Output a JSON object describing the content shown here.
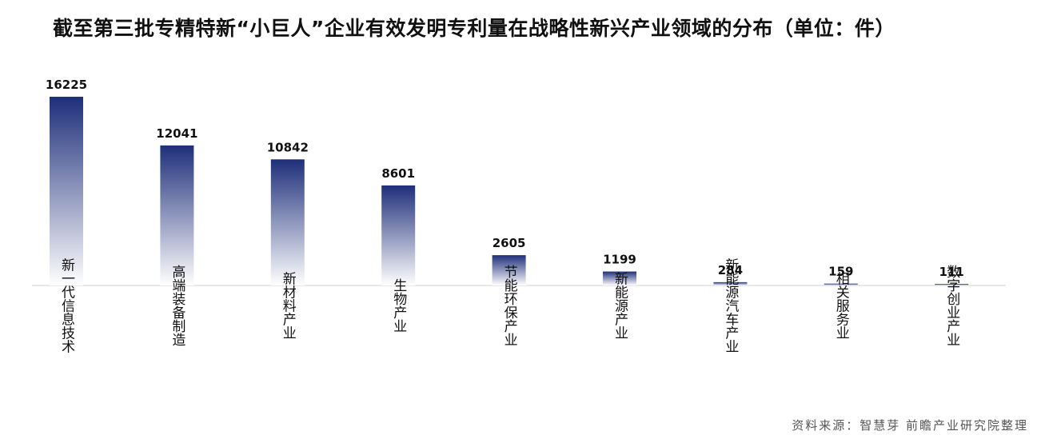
{
  "title": "截至第三批专精特新“小巨人”企业有效发明专利量在战略性新兴产业领域的分布（单位：件）",
  "source": "资料来源：智慧芽 前瞻产业研究院整理",
  "colors": {
    "bar_top": "#1e2f7a",
    "bar_bottom": "#ffffff",
    "axis": "#d0d0d0"
  },
  "chart_data": {
    "type": "bar",
    "categories": [
      "新一代信息技术",
      "高端装备制造",
      "新材料产业",
      "生物产业",
      "节能环保产业",
      "新能源产业",
      "新能源汽车产业",
      "相关服务业",
      "数字创业产业"
    ],
    "values": [
      16225,
      12041,
      10842,
      8601,
      2605,
      1199,
      284,
      159,
      111
    ],
    "data_labels": [
      "16225",
      "12041",
      "10842",
      "8601",
      "2605",
      "1199",
      "284",
      "159",
      "111"
    ],
    "ylim": [
      0,
      16225
    ],
    "grid": false,
    "legend": "none"
  }
}
